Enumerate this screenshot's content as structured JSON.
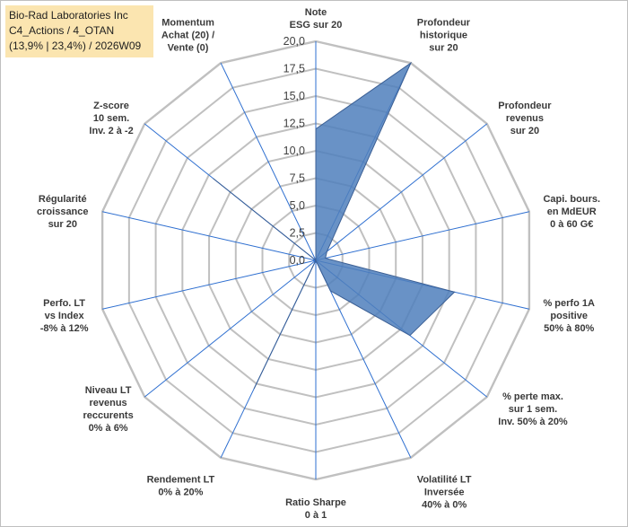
{
  "title_box": {
    "line1": "Bio-Rad Laboratories Inc",
    "line2": "C4_Actions / 4_OTAN",
    "line3": "(13,9% | 23,4%) / 2026W09"
  },
  "colors": {
    "fill": "#4f7fbc",
    "stroke": "#3b5f94",
    "grid": "#c0c0c0",
    "spoke": "#2e6fd0",
    "title_bg": "#fbe5b0"
  },
  "chart_data": {
    "type": "radar",
    "r_range": [
      0,
      20
    ],
    "ticks": [
      "0,0",
      "2,5",
      "5,0",
      "7,5",
      "10,0",
      "12,5",
      "15,0",
      "17,5",
      "20,0"
    ],
    "grid": true,
    "categories": [
      [
        "Note",
        "ESG sur 20"
      ],
      [
        "Profondeur",
        "historique",
        "sur 20"
      ],
      [
        "Profondeur",
        "revenus",
        "sur 20"
      ],
      [
        "Capi. bours.",
        "en MdEUR",
        "0 à 60 G€"
      ],
      [
        "% perfo 1A",
        "positive",
        "50% à 80%"
      ],
      [
        "% perte max.",
        "sur 1 sem.",
        "Inv. 50% à 20%"
      ],
      [
        "Volatilité LT",
        "Inversée",
        "40% à 0%"
      ],
      [
        "Ratio Sharpe",
        "0 à 1"
      ],
      [
        "Rendement LT",
        "0% à 20%"
      ],
      [
        "Niveau LT",
        "revenus",
        "reccurents",
        "0% à 6%"
      ],
      [
        "Perfo. LT",
        "vs Index",
        "-8% à 12%"
      ],
      [
        "Régularité",
        "croissance",
        "sur 20"
      ],
      [
        "Z-score",
        "10 sem.",
        "Inv. 2 à -2"
      ],
      [
        "Momentum",
        "Achat (20) /",
        "Vente (0)"
      ]
    ],
    "series": [
      {
        "values": [
          12.0,
          20.0,
          1.3,
          0.9,
          13.0,
          11.0,
          3.1,
          0.0,
          13.0,
          0.0,
          0.0,
          0.0,
          12.0,
          0.0
        ]
      }
    ]
  }
}
